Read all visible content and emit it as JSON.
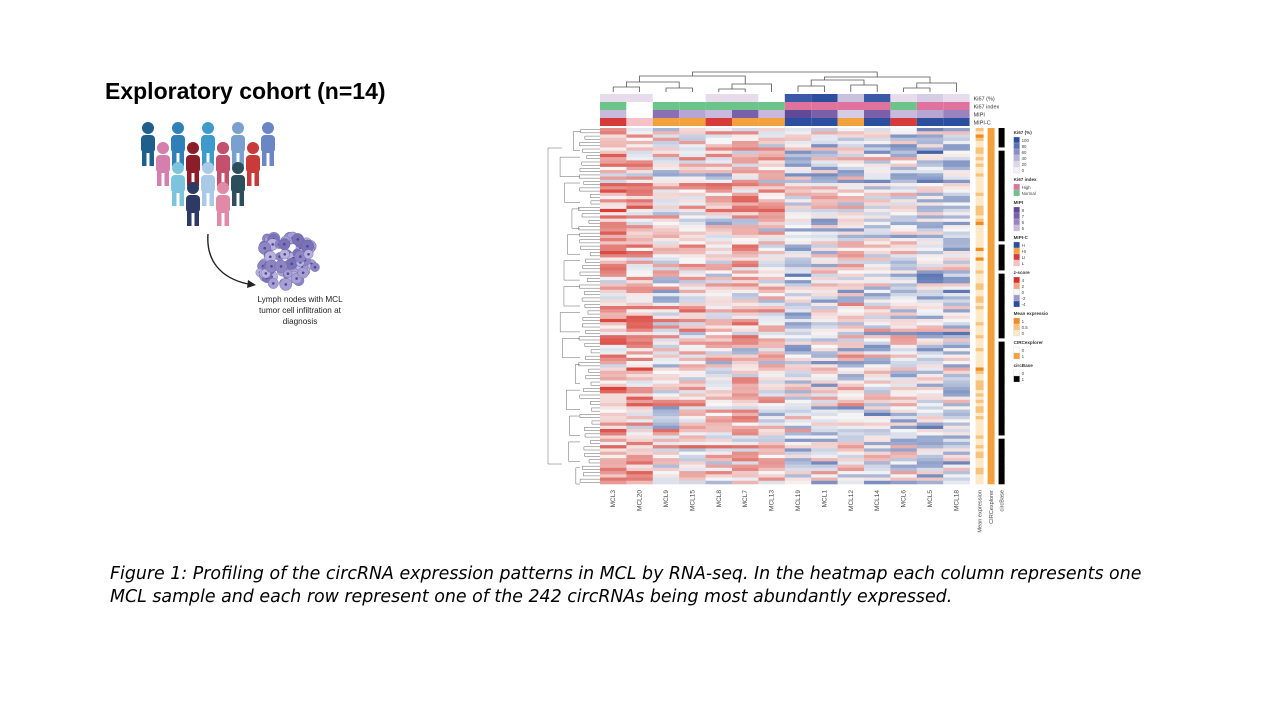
{
  "slide": {
    "cohort_title": "Exploratory cohort (n=14)",
    "lymph_caption": "Lymph nodes with MCL tumor cell infiltration at diagnosis",
    "caption": "Figure 1: Profiling of the circRNA expression patterns in MCL by RNA-seq. In the heatmap each column represents one MCL sample and each row represent one of the 242 circRNAs being most abundantly expressed."
  },
  "people_colors": [
    "#1f5f8b",
    "#2f7fb8",
    "#3e9acb",
    "#7aa0cf",
    "#6b86c4",
    "#d47fae",
    "#8c1e2a",
    "#a23240",
    "#c4506e",
    "#c93a3a",
    "#7cc4de",
    "#a9c9e6",
    "#2d4f5c",
    "#2e3a66",
    "#e08aa8"
  ],
  "chart_data": {
    "type": "heatmap",
    "samples": [
      "MCL3",
      "MCL20",
      "MCL9",
      "MCL15",
      "MCL8",
      "MCL7",
      "MCL13",
      "MCL19",
      "MCL1",
      "MCL12",
      "MCL14",
      "MCL6",
      "MCL5",
      "MCL18"
    ],
    "rows": 242,
    "annotation_tracks_top": [
      "Ki67 (%)",
      "Ki67 index",
      "MIPI",
      "MIPI-C"
    ],
    "annotation_tracks_side": [
      "Mean expression",
      "CIRCexplorer",
      "circBase"
    ],
    "top_annotations": {
      "ki67_pct_colors": [
        "#e8dcec",
        "#e8dcec",
        "#ffffff",
        "#ffffff",
        "#e8dcec",
        "#e8dcec",
        "#ffffff",
        "#3a5aa8",
        "#2c4e9e",
        "#c9c1de",
        "#3a5aa8",
        "#e8dcec",
        "#d7cce6",
        "#e8dcec"
      ],
      "ki67_index_colors": [
        "#6cc48a",
        "#ffffff",
        "#6cc48a",
        "#6cc48a",
        "#6cc48a",
        "#6cc48a",
        "#6cc48a",
        "#e0739e",
        "#e0739e",
        "#e0739e",
        "#e0739e",
        "#6cc48a",
        "#e0739e",
        "#e0739e"
      ],
      "mipi_colors": [
        "#c9b9dc",
        "#ffffff",
        "#8c6fb3",
        "#b7a5d3",
        "#c9b9dc",
        "#7a60a8",
        "#c9b9dc",
        "#5e4a96",
        "#7a60a8",
        "#d6cbe5",
        "#7a60a8",
        "#c9b9dc",
        "#b7a5d3",
        "#9a84bf"
      ],
      "mipi_c_colors": [
        "#d73a3a",
        "#f7c1c8",
        "#f2a13c",
        "#f2a13c",
        "#d73a3a",
        "#f2a13c",
        "#f2a13c",
        "#2c4e9e",
        "#2c4e9e",
        "#f2a13c",
        "#2c4e9e",
        "#d73a3a",
        "#2c4e9e",
        "#2c4e9e"
      ]
    },
    "legend": [
      {
        "title": "Ki67 (%)",
        "items": [
          {
            "label": "100",
            "color": "#2c4e9e"
          },
          {
            "label": "80",
            "color": "#5b6fb5"
          },
          {
            "label": "60",
            "color": "#8b8fc6"
          },
          {
            "label": "40",
            "color": "#b6b2d8"
          },
          {
            "label": "20",
            "color": "#dcd6ea"
          },
          {
            "label": "0",
            "color": "#f4f1f8"
          }
        ]
      },
      {
        "title": "Ki67 index",
        "items": [
          {
            "label": "High",
            "color": "#e0739e"
          },
          {
            "label": "Normal",
            "color": "#6cc48a"
          }
        ]
      },
      {
        "title": "MIPI",
        "items": [
          {
            "label": "8",
            "color": "#5e4a96"
          },
          {
            "label": "7",
            "color": "#7a60a8"
          },
          {
            "label": "6",
            "color": "#9a84bf"
          },
          {
            "label": "5",
            "color": "#c9b9dc"
          }
        ]
      },
      {
        "title": "MIPI-C",
        "items": [
          {
            "label": "H",
            "color": "#2c4e9e"
          },
          {
            "label": "HI",
            "color": "#f2a13c"
          },
          {
            "label": "LI",
            "color": "#d73a3a"
          },
          {
            "label": "L",
            "color": "#f7c1c8"
          }
        ]
      },
      {
        "title": "z-score",
        "items": [
          {
            "label": "4",
            "color": "#d73027"
          },
          {
            "label": "2",
            "color": "#f4a582"
          },
          {
            "label": "0",
            "color": "#f7f7f7"
          },
          {
            "label": "-2",
            "color": "#9e9ac8"
          },
          {
            "label": "-4",
            "color": "#2c4e9e"
          }
        ]
      },
      {
        "title": "Mean expressio",
        "items": [
          {
            "label": "1",
            "color": "#f28a1f"
          },
          {
            "label": "0.5",
            "color": "#f8c37c"
          },
          {
            "label": "0",
            "color": "#fde8c8"
          }
        ]
      },
      {
        "title": "CIRCexplorer",
        "items": [
          {
            "label": "0",
            "color": "#ffffff"
          },
          {
            "label": "1",
            "color": "#f2a13c"
          }
        ]
      },
      {
        "title": "circBase",
        "items": [
          {
            "label": "0",
            "color": "#ffffff"
          },
          {
            "label": "1",
            "color": "#000000"
          }
        ]
      }
    ],
    "colors": {
      "low": "#2c4e9e",
      "mid": "#f7f7f7",
      "high": "#d73027"
    }
  }
}
